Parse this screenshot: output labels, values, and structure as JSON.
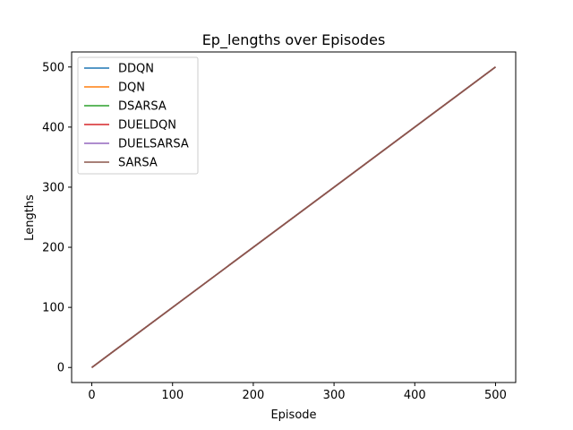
{
  "chart_data": {
    "type": "line",
    "title": "Ep_lengths over Episodes",
    "xlabel": "Episode",
    "ylabel": "Lengths",
    "xlim": [
      -25,
      525
    ],
    "ylim": [
      -25,
      525
    ],
    "xticks": [
      0,
      100,
      200,
      300,
      400,
      500
    ],
    "yticks": [
      0,
      100,
      200,
      300,
      400,
      500
    ],
    "grid": false,
    "legend_position": "top-left",
    "series": [
      {
        "name": "DDQN",
        "color": "#1f77b4",
        "x": [
          0,
          500
        ],
        "y": [
          0,
          500
        ]
      },
      {
        "name": "DQN",
        "color": "#ff7f0e",
        "x": [
          0,
          500
        ],
        "y": [
          0,
          500
        ]
      },
      {
        "name": "DSARSA",
        "color": "#2ca02c",
        "x": [
          0,
          500
        ],
        "y": [
          0,
          500
        ]
      },
      {
        "name": "DUELDQN",
        "color": "#d62728",
        "x": [
          0,
          500
        ],
        "y": [
          0,
          500
        ]
      },
      {
        "name": "DUELSARSA",
        "color": "#9467bd",
        "x": [
          0,
          500
        ],
        "y": [
          0,
          500
        ]
      },
      {
        "name": "SARSA",
        "color": "#8c564b",
        "x": [
          0,
          500
        ],
        "y": [
          0,
          500
        ]
      }
    ]
  }
}
